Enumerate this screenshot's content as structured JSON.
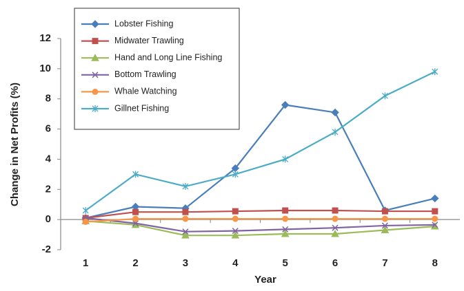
{
  "chart_data": {
    "type": "line",
    "x_label": "Year",
    "y_label": "Change in Net Profits (%)",
    "categories": [
      "1",
      "2",
      "3",
      "4",
      "5",
      "6",
      "7",
      "8"
    ],
    "ylim": [
      -2,
      12
    ],
    "yticks": [
      -2,
      0,
      2,
      4,
      6,
      8,
      10,
      12
    ],
    "grid": false,
    "legend": "upper left",
    "series": [
      {
        "name": "Lobster Fishing",
        "color": "#4a7ebb",
        "marker": "diamond",
        "values": [
          0.1,
          0.85,
          0.75,
          3.4,
          7.6,
          7.1,
          0.6,
          1.4
        ]
      },
      {
        "name": "Midwater Trawling",
        "color": "#c0504d",
        "marker": "square",
        "values": [
          0.1,
          0.5,
          0.5,
          0.55,
          0.6,
          0.6,
          0.55,
          0.55
        ]
      },
      {
        "name": "Hand and Long Line Fishing",
        "color": "#9bbb59",
        "marker": "triangle",
        "values": [
          -0.1,
          -0.35,
          -1.05,
          -1.05,
          -0.95,
          -0.95,
          -0.7,
          -0.45
        ]
      },
      {
        "name": "Bottom Trawling",
        "color": "#8064a2",
        "marker": "x",
        "values": [
          0.1,
          -0.25,
          -0.8,
          -0.75,
          -0.65,
          -0.55,
          -0.4,
          -0.35
        ]
      },
      {
        "name": "Whale Watching",
        "color": "#f79646",
        "marker": "circle",
        "values": [
          -0.15,
          0.05,
          0.05,
          0.05,
          0.05,
          0.05,
          0.05,
          0.05
        ]
      },
      {
        "name": "Gillnet Fishing",
        "color": "#4bacc6",
        "marker": "star",
        "values": [
          0.6,
          3.0,
          2.2,
          3.0,
          4.0,
          5.8,
          8.2,
          9.8
        ]
      }
    ]
  }
}
